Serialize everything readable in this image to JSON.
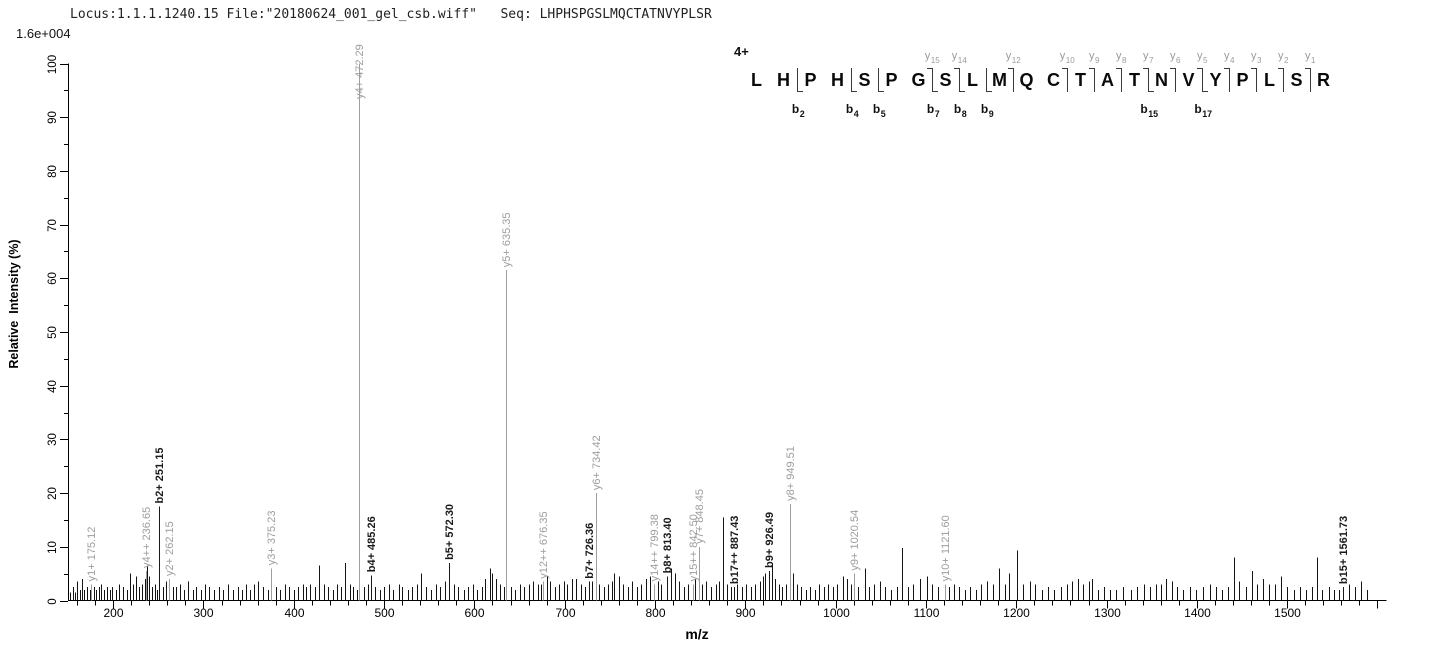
{
  "header": {
    "info_line": "Locus:1.1.1.1240.15 File:\"20180624_001_gel_csb.wiff\"   Seq: LHPHSPGSLMQCTATNVYPLSR",
    "scale_label": "1.6e+004"
  },
  "fragment_map": {
    "charge_label": "4+",
    "sequence": [
      "L",
      "H",
      "P",
      "H",
      "S",
      "P",
      "G",
      "S",
      "L",
      "M",
      "Q",
      "C",
      "T",
      "A",
      "T",
      "N",
      "V",
      "Y",
      "P",
      "L",
      "S",
      "R"
    ],
    "boundaries": [
      {
        "after": 2,
        "b": "b2"
      },
      {
        "after": 4,
        "b": "b4"
      },
      {
        "after": 5,
        "b": "b5"
      },
      {
        "after": 7,
        "b": "b7",
        "y": "y15"
      },
      {
        "after": 8,
        "b": "b8",
        "y": "y14"
      },
      {
        "after": 9,
        "b": "b9"
      },
      {
        "after": 10,
        "y": "y12"
      },
      {
        "after": 12,
        "y": "y10"
      },
      {
        "after": 13,
        "y": "y9"
      },
      {
        "after": 14,
        "y": "y8"
      },
      {
        "after": 15,
        "b": "b15",
        "y": "y7"
      },
      {
        "after": 16,
        "y": "y6"
      },
      {
        "after": 17,
        "b": "b17",
        "y": "y5"
      },
      {
        "after": 18,
        "y": "y4"
      },
      {
        "after": 19,
        "y": "y3"
      },
      {
        "after": 20,
        "y": "y2"
      },
      {
        "after": 21,
        "y": "y1"
      }
    ]
  },
  "chart_data": {
    "type": "bar",
    "subtype": "ms2-centroid-spectrum",
    "title": "",
    "xlabel": "m/z",
    "ylabel": "Relative  Intensity (%)",
    "intensity_scale": "1.6e+004",
    "xlim": [
      150,
      1610
    ],
    "ylim": [
      0,
      100
    ],
    "x_major_tick": 100,
    "x_minor_tick": 20,
    "x_first_label": 200,
    "x_last_label": 1500,
    "y_major_tick": 10,
    "y_minor_tick": 5,
    "grid": false,
    "legend": "none",
    "colors": {
      "b_ion": "#1a1a1a",
      "y_ion": "#9e9e9e",
      "noise_peak": "#141414",
      "axis": "#000000"
    },
    "annotated_peaks": [
      {
        "ion": "y1+",
        "mz": "175.12",
        "mz_value": 175.12,
        "intensity_pct": 3,
        "series": "y"
      },
      {
        "ion": "y4++",
        "mz": "236.65",
        "mz_value": 236.65,
        "intensity_pct": 5.5,
        "series": "y"
      },
      {
        "ion": "b2+",
        "mz": "251.15",
        "mz_value": 251.15,
        "intensity_pct": 17.5,
        "series": "b"
      },
      {
        "ion": "y2+",
        "mz": "262.15",
        "mz_value": 262.15,
        "intensity_pct": 4,
        "series": "y"
      },
      {
        "ion": "y3+",
        "mz": "375.23",
        "mz_value": 375.23,
        "intensity_pct": 6,
        "series": "y"
      },
      {
        "ion": "y4+",
        "mz": "472.29",
        "mz_value": 472.29,
        "intensity_pct": 100,
        "series": "y"
      },
      {
        "ion": "b4+",
        "mz": "485.26",
        "mz_value": 485.26,
        "intensity_pct": 4.7,
        "series": "b"
      },
      {
        "ion": "b5+",
        "mz": "572.30",
        "mz_value": 572.3,
        "intensity_pct": 7,
        "series": "b"
      },
      {
        "ion": "y5+",
        "mz": "635.35",
        "mz_value": 635.35,
        "intensity_pct": 61.5,
        "series": "y"
      },
      {
        "ion": "y12++",
        "mz": "676.35",
        "mz_value": 676.35,
        "intensity_pct": 3.5,
        "series": "y"
      },
      {
        "ion": "b7+",
        "mz": "726.36",
        "mz_value": 726.36,
        "intensity_pct": 3.5,
        "series": "b"
      },
      {
        "ion": "y6+",
        "mz": "734.42",
        "mz_value": 734.42,
        "intensity_pct": 20,
        "series": "y"
      },
      {
        "ion": "y14++",
        "mz": "799.38",
        "mz_value": 799.38,
        "intensity_pct": 3,
        "series": "y"
      },
      {
        "ion": "b8+",
        "mz": "813.40",
        "mz_value": 813.4,
        "intensity_pct": 4.5,
        "series": "b"
      },
      {
        "ion": "y15++",
        "mz": "842.50",
        "mz_value": 842.5,
        "intensity_pct": 3,
        "series": "y"
      },
      {
        "ion": "y7+",
        "mz": "848.45",
        "mz_value": 848.45,
        "intensity_pct": 10,
        "series": "y"
      },
      {
        "ion": "b17++",
        "mz": "887.43",
        "mz_value": 887.43,
        "intensity_pct": 2.5,
        "series": "b"
      },
      {
        "ion": "b9+",
        "mz": "926.49",
        "mz_value": 926.49,
        "intensity_pct": 5.5,
        "series": "b"
      },
      {
        "ion": "y8+",
        "mz": "949.51",
        "mz_value": 949.51,
        "intensity_pct": 18,
        "series": "y"
      },
      {
        "ion": "y9+",
        "mz": "1020.54",
        "mz_value": 1020.54,
        "intensity_pct": 5,
        "series": "y"
      },
      {
        "ion": "y10+",
        "mz": "1121.60",
        "mz_value": 1121.6,
        "intensity_pct": 3,
        "series": "y"
      },
      {
        "ion": "b15+",
        "mz": "1561.73",
        "mz_value": 1561.73,
        "intensity_pct": 2.5,
        "series": "b"
      }
    ],
    "noise_peaks": [
      [
        152,
        1.5
      ],
      [
        155,
        2.5
      ],
      [
        158,
        1.5
      ],
      [
        160,
        3.5
      ],
      [
        163,
        2
      ],
      [
        165,
        4
      ],
      [
        168,
        2
      ],
      [
        171,
        2.5
      ],
      [
        174,
        2
      ],
      [
        179,
        2.5
      ],
      [
        181,
        2
      ],
      [
        184,
        2.5
      ],
      [
        187,
        3
      ],
      [
        190,
        2
      ],
      [
        193,
        2.5
      ],
      [
        196,
        2
      ],
      [
        199,
        2.5
      ],
      [
        203,
        2
      ],
      [
        207,
        3
      ],
      [
        211,
        2.5
      ],
      [
        215,
        2
      ],
      [
        219,
        5
      ],
      [
        222,
        3
      ],
      [
        225,
        4.5
      ],
      [
        229,
        2.5
      ],
      [
        232,
        3
      ],
      [
        235,
        4
      ],
      [
        238,
        6.5
      ],
      [
        240,
        4.5
      ],
      [
        243,
        2.5
      ],
      [
        246,
        3
      ],
      [
        249,
        2
      ],
      [
        255,
        2.5
      ],
      [
        258,
        3.5
      ],
      [
        266,
        2.5
      ],
      [
        270,
        2.5
      ],
      [
        274,
        3
      ],
      [
        278,
        2
      ],
      [
        283,
        3.5
      ],
      [
        288,
        2
      ],
      [
        292,
        2.5
      ],
      [
        297,
        2
      ],
      [
        302,
        3
      ],
      [
        306,
        2.5
      ],
      [
        312,
        2
      ],
      [
        317,
        2.5
      ],
      [
        322,
        2
      ],
      [
        327,
        3
      ],
      [
        333,
        2
      ],
      [
        338,
        2.5
      ],
      [
        343,
        2
      ],
      [
        347,
        3
      ],
      [
        352,
        2
      ],
      [
        356,
        3
      ],
      [
        360,
        3.5
      ],
      [
        366,
        2.5
      ],
      [
        371,
        2
      ],
      [
        380,
        2.5
      ],
      [
        385,
        2
      ],
      [
        390,
        3
      ],
      [
        395,
        2.5
      ],
      [
        400,
        2
      ],
      [
        405,
        2.5
      ],
      [
        410,
        3
      ],
      [
        414,
        2.5
      ],
      [
        418,
        3
      ],
      [
        423,
        2.5
      ],
      [
        428,
        6.5
      ],
      [
        433,
        3
      ],
      [
        438,
        2.5
      ],
      [
        443,
        2
      ],
      [
        448,
        3
      ],
      [
        452,
        2.5
      ],
      [
        457,
        7
      ],
      [
        462,
        3
      ],
      [
        466,
        2.5
      ],
      [
        470,
        2
      ],
      [
        478,
        2.5
      ],
      [
        482,
        3
      ],
      [
        490,
        2.5
      ],
      [
        495,
        2
      ],
      [
        500,
        2.5
      ],
      [
        505,
        3
      ],
      [
        510,
        2
      ],
      [
        516,
        3
      ],
      [
        520,
        2.5
      ],
      [
        526,
        2
      ],
      [
        531,
        2.5
      ],
      [
        536,
        3
      ],
      [
        541,
        5
      ],
      [
        546,
        2.5
      ],
      [
        552,
        2
      ],
      [
        557,
        3
      ],
      [
        562,
        2.5
      ],
      [
        567,
        3.5
      ],
      [
        577,
        3
      ],
      [
        582,
        2.5
      ],
      [
        588,
        2
      ],
      [
        593,
        2.5
      ],
      [
        598,
        3
      ],
      [
        603,
        2
      ],
      [
        608,
        2.5
      ],
      [
        612,
        4
      ],
      [
        617,
        6
      ],
      [
        620,
        5
      ],
      [
        624,
        4
      ],
      [
        628,
        3
      ],
      [
        633,
        2.5
      ],
      [
        640,
        2.5
      ],
      [
        645,
        2
      ],
      [
        650,
        3
      ],
      [
        655,
        2.5
      ],
      [
        660,
        3
      ],
      [
        665,
        3.5
      ],
      [
        670,
        3
      ],
      [
        674,
        3
      ],
      [
        680,
        4.5
      ],
      [
        684,
        3.5
      ],
      [
        689,
        2.5
      ],
      [
        694,
        3
      ],
      [
        699,
        3.5
      ],
      [
        703,
        3
      ],
      [
        708,
        4
      ],
      [
        713,
        4
      ],
      [
        718,
        3
      ],
      [
        722,
        2.5
      ],
      [
        730,
        3.5
      ],
      [
        738,
        3
      ],
      [
        743,
        2.5
      ],
      [
        748,
        3
      ],
      [
        752,
        3.5
      ],
      [
        755,
        5
      ],
      [
        760,
        4.5
      ],
      [
        765,
        3
      ],
      [
        770,
        2.5
      ],
      [
        775,
        3.5
      ],
      [
        780,
        2.5
      ],
      [
        785,
        3
      ],
      [
        790,
        4
      ],
      [
        794,
        4.5
      ],
      [
        803,
        3.5
      ],
      [
        807,
        3
      ],
      [
        818,
        6
      ],
      [
        822,
        5
      ],
      [
        827,
        3.5
      ],
      [
        832,
        2.5
      ],
      [
        837,
        3
      ],
      [
        844,
        4
      ],
      [
        852,
        3
      ],
      [
        857,
        3.5
      ],
      [
        862,
        2.5
      ],
      [
        867,
        3
      ],
      [
        871,
        3.5
      ],
      [
        875,
        15.5
      ],
      [
        880,
        3
      ],
      [
        884,
        2.5
      ],
      [
        891,
        3
      ],
      [
        896,
        2.5
      ],
      [
        901,
        3
      ],
      [
        906,
        2.5
      ],
      [
        911,
        3
      ],
      [
        916,
        3.5
      ],
      [
        920,
        4.5
      ],
      [
        922,
        5
      ],
      [
        929,
        7
      ],
      [
        933,
        4
      ],
      [
        937,
        3
      ],
      [
        941,
        2.5
      ],
      [
        945,
        3
      ],
      [
        953,
        5
      ],
      [
        957,
        3
      ],
      [
        962,
        2.5
      ],
      [
        967,
        2
      ],
      [
        972,
        2.5
      ],
      [
        977,
        2
      ],
      [
        982,
        3
      ],
      [
        987,
        2.5
      ],
      [
        992,
        3
      ],
      [
        997,
        2.5
      ],
      [
        1002,
        3
      ],
      [
        1008,
        4.5
      ],
      [
        1013,
        4
      ],
      [
        1017,
        3
      ],
      [
        1025,
        2.5
      ],
      [
        1032,
        6
      ],
      [
        1037,
        2.5
      ],
      [
        1043,
        3
      ],
      [
        1049,
        3.5
      ],
      [
        1055,
        2.5
      ],
      [
        1061,
        2
      ],
      [
        1068,
        2.5
      ],
      [
        1074,
        9.8
      ],
      [
        1080,
        2.5
      ],
      [
        1086,
        3
      ],
      [
        1093,
        4
      ],
      [
        1101,
        4.5
      ],
      [
        1107,
        3
      ],
      [
        1113,
        2.5
      ],
      [
        1126,
        2.5
      ],
      [
        1131,
        3
      ],
      [
        1137,
        2.5
      ],
      [
        1143,
        2
      ],
      [
        1149,
        2.5
      ],
      [
        1155,
        2
      ],
      [
        1161,
        3
      ],
      [
        1168,
        3.5
      ],
      [
        1174,
        3
      ],
      [
        1181,
        6
      ],
      [
        1187,
        3
      ],
      [
        1192,
        5
      ],
      [
        1201,
        9.3
      ],
      [
        1207,
        3
      ],
      [
        1215,
        3.5
      ],
      [
        1221,
        3
      ],
      [
        1228,
        2
      ],
      [
        1235,
        2.5
      ],
      [
        1242,
        2
      ],
      [
        1249,
        2.5
      ],
      [
        1256,
        3
      ],
      [
        1262,
        3.5
      ],
      [
        1268,
        4
      ],
      [
        1274,
        3
      ],
      [
        1280,
        3.5
      ],
      [
        1284,
        4
      ],
      [
        1290,
        2
      ],
      [
        1297,
        2.5
      ],
      [
        1304,
        2
      ],
      [
        1311,
        2
      ],
      [
        1318,
        2.5
      ],
      [
        1327,
        2
      ],
      [
        1334,
        2.5
      ],
      [
        1341,
        3
      ],
      [
        1348,
        2.5
      ],
      [
        1355,
        3
      ],
      [
        1360,
        3
      ],
      [
        1366,
        4
      ],
      [
        1372,
        3.5
      ],
      [
        1378,
        2.5
      ],
      [
        1385,
        2
      ],
      [
        1392,
        2.5
      ],
      [
        1399,
        2
      ],
      [
        1407,
        2.5
      ],
      [
        1414,
        3
      ],
      [
        1421,
        2.5
      ],
      [
        1428,
        2
      ],
      [
        1434,
        2.5
      ],
      [
        1441,
        8
      ],
      [
        1447,
        3.5
      ],
      [
        1454,
        2.5
      ],
      [
        1461,
        5.5
      ],
      [
        1467,
        3
      ],
      [
        1473,
        4
      ],
      [
        1480,
        3
      ],
      [
        1487,
        3
      ],
      [
        1493,
        4.5
      ],
      [
        1500,
        2.5
      ],
      [
        1507,
        2
      ],
      [
        1514,
        2.5
      ],
      [
        1521,
        2
      ],
      [
        1527,
        2.5
      ],
      [
        1533,
        8
      ],
      [
        1539,
        2
      ],
      [
        1546,
        2.5
      ],
      [
        1552,
        2
      ],
      [
        1557,
        2
      ],
      [
        1568,
        3
      ],
      [
        1575,
        2.5
      ],
      [
        1582,
        3.5
      ],
      [
        1588,
        2
      ]
    ]
  }
}
